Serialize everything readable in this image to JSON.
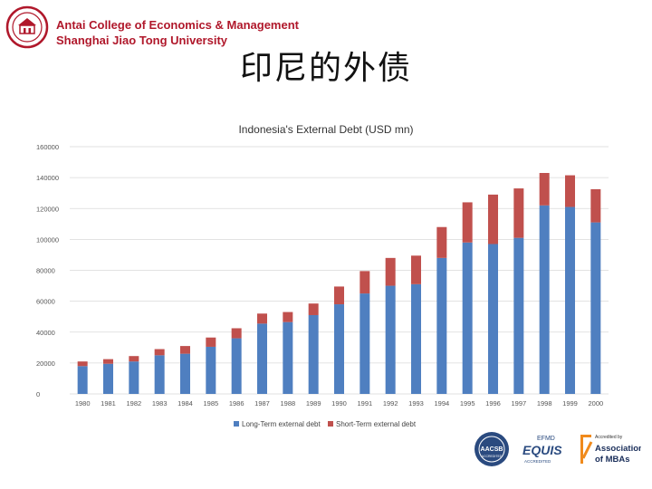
{
  "header": {
    "institution_line1": "Antai College of Economics & Management",
    "institution_line2": "Shanghai Jiao Tong University"
  },
  "slide": {
    "title": "印尼的外债"
  },
  "logos": {
    "aacsb": "AACSB",
    "aacsb_sub": "ACCREDITED",
    "efmd": "EFMD",
    "equis": "EQUIS",
    "equis_sub": "ACCREDITED",
    "amba_pre": "Accredited by",
    "amba_line1": "Association",
    "amba_line2": "of MBAs"
  },
  "colors": {
    "brand": "#b0182b",
    "long_term": "#4f7fc0",
    "short_term": "#c0504d",
    "grid": "#d9d9d9"
  },
  "chart_data": {
    "type": "bar",
    "stacked": true,
    "title": "Indonesia's External Debt (USD mn)",
    "xlabel": "",
    "ylabel": "",
    "ylim": [
      0,
      160000
    ],
    "yticks": [
      0,
      20000,
      40000,
      60000,
      80000,
      100000,
      120000,
      140000,
      160000
    ],
    "grid": true,
    "legend_position": "bottom",
    "categories": [
      "1980",
      "1981",
      "1982",
      "1983",
      "1984",
      "1985",
      "1986",
      "1987",
      "1988",
      "1989",
      "1990",
      "1991",
      "1992",
      "1993",
      "1994",
      "1995",
      "1996",
      "1997",
      "1998",
      "1999",
      "2000"
    ],
    "series": [
      {
        "name": "Long-Term external debt",
        "values": [
          18000,
          19500,
          21000,
          25000,
          26000,
          30500,
          36000,
          45500,
          46500,
          51000,
          58000,
          65000,
          70000,
          71000,
          88000,
          98000,
          97000,
          101000,
          122000,
          121000,
          111000
        ]
      },
      {
        "name": "Short-Term external debt",
        "values": [
          3000,
          3000,
          3500,
          4000,
          5000,
          6000,
          6500,
          6500,
          6500,
          7500,
          11500,
          14500,
          18000,
          18500,
          20000,
          26000,
          32000,
          32000,
          21000,
          20500,
          21500
        ]
      }
    ]
  }
}
